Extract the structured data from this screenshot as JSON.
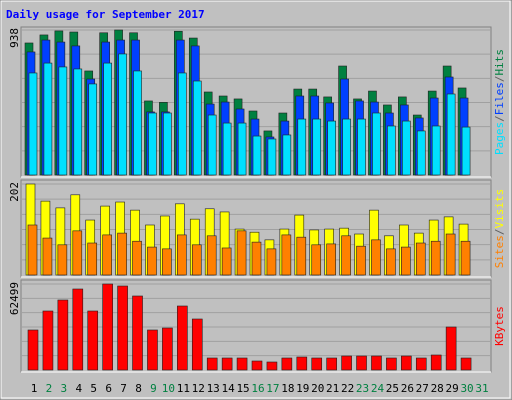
{
  "chart_data": {
    "type": "bar",
    "title": "Daily usage for September 2017",
    "categories": [
      "1",
      "2",
      "3",
      "4",
      "5",
      "6",
      "7",
      "8",
      "9",
      "10",
      "11",
      "12",
      "13",
      "14",
      "15",
      "16",
      "17",
      "18",
      "19",
      "20",
      "21",
      "22",
      "23",
      "24",
      "25",
      "26",
      "27",
      "28",
      "29",
      "30",
      "31"
    ],
    "category_colors": [
      "#000000",
      "#008040",
      "#008040",
      "#000000",
      "#000000",
      "#000000",
      "#000000",
      "#000000",
      "#008040",
      "#008040",
      "#000000",
      "#000000",
      "#000000",
      "#000000",
      "#000000",
      "#008040",
      "#008040",
      "#000000",
      "#000000",
      "#000000",
      "#000000",
      "#000000",
      "#008040",
      "#008040",
      "#000000",
      "#000000",
      "#000000",
      "#000000",
      "#000000",
      "#008040",
      "#008040"
    ],
    "separator": "/",
    "panels": [
      {
        "ylim": [
          0,
          938
        ],
        "yticks": [
          938
        ],
        "series": [
          {
            "name": "Hits",
            "color": "#008040",
            "values": [
              854,
              906,
              932,
              925,
              673,
              920,
              938,
              920,
              479,
              470,
              930,
              886,
              537,
              511,
              492,
              414,
              285,
              401,
              556,
              556,
              505,
              705,
              492,
              543,
              453,
              505,
              388,
              543,
              705,
              563,
              null
            ]
          },
          {
            "name": "Files",
            "color": "#0040ff",
            "values": [
              796,
              873,
              860,
              835,
              621,
              860,
              873,
              873,
              408,
              408,
              873,
              835,
              459,
              472,
              427,
              362,
              246,
              349,
              511,
              511,
              466,
              621,
              479,
              472,
              401,
              453,
              369,
              498,
              634,
              498,
              null
            ]
          },
          {
            "name": "Pages",
            "color": "#00e0ff",
            "values": [
              660,
              724,
              699,
              686,
              589,
              724,
              783,
              673,
              401,
              401,
              660,
              608,
              388,
              336,
              336,
              252,
              233,
              259,
              362,
              362,
              349,
              362,
              362,
              401,
              317,
              349,
              285,
              317,
              524,
              310,
              null
            ]
          }
        ]
      },
      {
        "ylim": [
          0,
          202
        ],
        "yticks": [
          202
        ],
        "series": [
          {
            "name": "Visits",
            "color": "#ffff00",
            "values": [
              202,
              164,
              149,
              178,
              122,
              153,
              162,
              144,
              111,
              131,
              158,
              124,
              147,
              140,
              102,
              95,
              78,
              102,
              133,
              100,
              102,
              104,
              91,
              144,
              87,
              111,
              93,
              122,
              129,
              113,
              null
            ]
          },
          {
            "name": "Sites",
            "color": "#ff8000",
            "values": [
              111,
              82,
              67,
              98,
              71,
              89,
              93,
              75,
              62,
              58,
              89,
              67,
              87,
              60,
              98,
              73,
              58,
              89,
              84,
              67,
              69,
              87,
              64,
              78,
              58,
              62,
              71,
              75,
              91,
              75,
              null
            ]
          }
        ]
      },
      {
        "ylim": [
          0,
          62499
        ],
        "yticks": [
          62499
        ],
        "series": [
          {
            "name": "KBytes",
            "color": "#ff0000",
            "values": [
              29070,
              42876,
              50870,
              58863,
              42876,
              62499,
              61046,
              53777,
              29070,
              30523,
              46510,
              37062,
              8720,
              8720,
              8720,
              6540,
              5814,
              8720,
              9447,
              8720,
              8720,
              10174,
              10174,
              10174,
              8720,
              10174,
              8720,
              10900,
              31248,
              8720,
              null
            ]
          }
        ]
      }
    ]
  }
}
